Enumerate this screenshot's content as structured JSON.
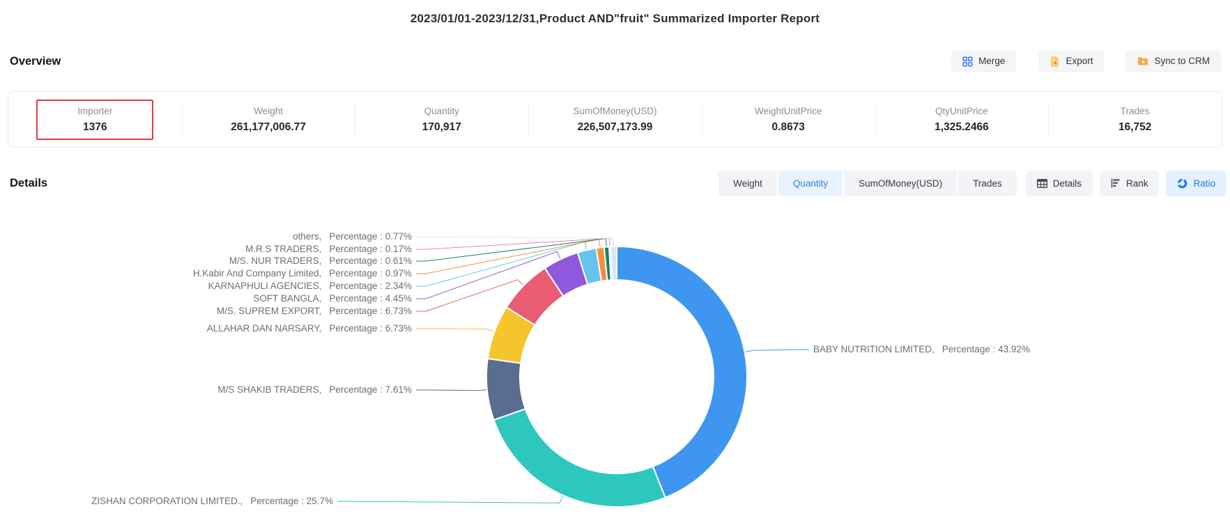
{
  "page": {
    "title": "2023/01/01-2023/12/31,Product AND\"fruit\" Summarized Importer Report"
  },
  "colors": {
    "accent_blue": "#1C7BF2",
    "active_tab_blue": "#317FE4",
    "highlight_red": "#E23A3C",
    "button_bg": "#F2F4F8",
    "active_bg": "#E3F0FD"
  },
  "overview": {
    "heading": "Overview",
    "actions": [
      {
        "label": "Merge",
        "icon": "merge-icon"
      },
      {
        "label": "Export",
        "icon": "export-icon"
      },
      {
        "label": "Sync to CRM",
        "icon": "sync-crm-icon"
      }
    ],
    "stats": [
      {
        "label": "Importer",
        "value": "1376",
        "highlighted": true
      },
      {
        "label": "Weight",
        "value": "261,177,006.77"
      },
      {
        "label": "Quantity",
        "value": "170,917"
      },
      {
        "label": "SumOfMoney(USD)",
        "value": "226,507,173.99"
      },
      {
        "label": "WeightUnitPrice",
        "value": "0.8673"
      },
      {
        "label": "QtyUnitPrice",
        "value": "1,325.2466"
      },
      {
        "label": "Trades",
        "value": "16,752"
      }
    ]
  },
  "details": {
    "heading": "Details",
    "tabs": [
      {
        "label": "Weight",
        "active": false
      },
      {
        "label": "Quantity",
        "active": true
      },
      {
        "label": "SumOfMoney(USD)",
        "active": false
      },
      {
        "label": "Trades",
        "active": false
      }
    ],
    "view_buttons": [
      {
        "label": "Details",
        "icon": "details-icon",
        "active": false
      },
      {
        "label": "Rank",
        "icon": "rank-icon",
        "active": false
      },
      {
        "label": "Ratio",
        "icon": "ratio-icon",
        "active": true
      }
    ]
  },
  "chart_data": {
    "type": "pie",
    "subtype": "donut",
    "title": "",
    "legend": "none",
    "label_prefix": "Percentage : ",
    "label_separator": ",",
    "percent_suffix": "%",
    "series": [
      {
        "name": "BABY NUTRITION LIMITED",
        "value": 43.92,
        "color": "#3E96F1"
      },
      {
        "name": "ZISHAN CORPORATION LIMITED.",
        "value": 25.7,
        "color": "#2EC7BD"
      },
      {
        "name": "M/S SHAKIB TRADERS",
        "value": 7.61,
        "color": "#5A6C90"
      },
      {
        "name": "ALLAHAR DAN NARSARY",
        "value": 6.73,
        "color": "#F6C52E"
      },
      {
        "name": "M/S. SUPREM EXPORT",
        "value": 6.73,
        "color": "#E95C72"
      },
      {
        "name": "SOFT BANGLA",
        "value": 4.45,
        "color": "#9058DC"
      },
      {
        "name": "KARNAPHULI AGENCIES",
        "value": 2.34,
        "color": "#67C3EB"
      },
      {
        "name": "H.Kabir And Company Limited",
        "value": 0.97,
        "color": "#F78E3C"
      },
      {
        "name": "M/S. NUR TRADERS",
        "value": 0.61,
        "color": "#17816B"
      },
      {
        "name": "M.R.S TRADERS",
        "value": 0.17,
        "color": "#F07FB0"
      },
      {
        "name": "others",
        "value": 0.77,
        "color": "#D8E7F7"
      }
    ]
  }
}
